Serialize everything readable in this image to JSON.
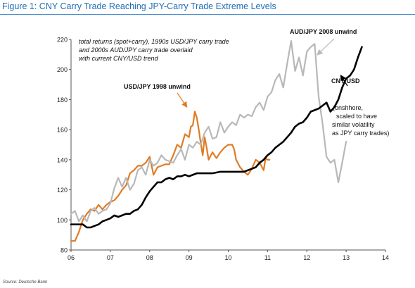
{
  "figure_title": "Figure 1: CNY Carry Trade Reaching JPY-Carry Trade Extreme Levels",
  "source": "Source: Deutsche Bank",
  "chart_data": {
    "type": "line",
    "xlim": [
      6,
      14
    ],
    "ylim": [
      80,
      220
    ],
    "x_ticks": [
      6,
      7,
      8,
      9,
      10,
      11,
      12,
      13,
      14
    ],
    "x_tick_labels": [
      "06",
      "07",
      "08",
      "09",
      "10",
      "11",
      "12",
      "13",
      "14"
    ],
    "y_ticks": [
      80,
      100,
      120,
      140,
      160,
      180,
      200,
      220
    ],
    "y_tick_labels": [
      "80",
      "100",
      "120",
      "140",
      "160",
      "180",
      "200",
      "220"
    ],
    "grid": false,
    "note_lines": [
      "total returns (spot+carry), 1990s USD/JPY carry trade",
      "and 2000s AUD/JPY carry trade overlaid",
      "with current CNY/USD trend"
    ],
    "annotations": {
      "usdjpy": "USD/JPY 1998 unwind",
      "audjpy": "AUD/JPY 2008 unwind",
      "cny_lines": [
        "CNY/USD",
        "(onshhore,",
        "scaled to have",
        "similar volatility",
        "as JPY carry trades)"
      ]
    },
    "series": [
      {
        "key": "usdjpy",
        "color": "#e07b24",
        "x": [
          6.0,
          6.1,
          6.2,
          6.3,
          6.4,
          6.5,
          6.6,
          6.7,
          6.8,
          6.9,
          7.0,
          7.1,
          7.2,
          7.3,
          7.4,
          7.5,
          7.6,
          7.7,
          7.8,
          7.9,
          8.0,
          8.1,
          8.2,
          8.3,
          8.4,
          8.5,
          8.6,
          8.7,
          8.8,
          8.9,
          9.0,
          9.05,
          9.1,
          9.15,
          9.2,
          9.25,
          9.3,
          9.35,
          9.4,
          9.45,
          9.5,
          9.6,
          9.7,
          9.8,
          9.9,
          10.0,
          10.1,
          10.15,
          10.2,
          10.3,
          10.4,
          10.5,
          10.6,
          10.7,
          10.8,
          10.9,
          10.95,
          11.0,
          11.05
        ],
        "values": [
          86,
          86,
          92,
          100,
          104,
          107,
          106,
          110,
          107,
          110,
          112,
          113,
          116,
          120,
          123,
          131,
          133,
          136,
          136,
          138,
          142,
          130,
          135,
          136,
          137,
          137,
          143,
          150,
          148,
          157,
          155,
          162,
          163,
          172,
          168,
          160,
          151,
          143,
          155,
          148,
          140,
          145,
          141,
          145,
          148,
          150,
          150,
          147,
          140,
          135,
          132,
          130,
          134,
          140,
          138,
          133,
          141,
          140,
          140
        ]
      },
      {
        "key": "audjpy",
        "color": "#b8b8b8",
        "x": [
          6.0,
          6.1,
          6.2,
          6.3,
          6.4,
          6.5,
          6.6,
          6.7,
          6.8,
          6.9,
          7.0,
          7.1,
          7.2,
          7.3,
          7.4,
          7.5,
          7.6,
          7.7,
          7.8,
          7.9,
          8.0,
          8.1,
          8.2,
          8.3,
          8.4,
          8.5,
          8.6,
          8.7,
          8.8,
          8.9,
          9.0,
          9.1,
          9.2,
          9.3,
          9.4,
          9.5,
          9.6,
          9.7,
          9.8,
          9.9,
          10.0,
          10.1,
          10.2,
          10.3,
          10.4,
          10.5,
          10.6,
          10.7,
          10.8,
          10.9,
          11.0,
          11.1,
          11.2,
          11.3,
          11.4,
          11.5,
          11.6,
          11.7,
          11.8,
          11.9,
          12.0,
          12.1,
          12.2,
          12.3,
          12.4,
          12.5,
          12.6,
          12.7,
          12.8,
          12.9,
          13.0
        ],
        "values": [
          104,
          106,
          99,
          103,
          99,
          106,
          108,
          104,
          106,
          107,
          111,
          121,
          128,
          122,
          128,
          120,
          124,
          133,
          135,
          130,
          140,
          136,
          138,
          143,
          140,
          139,
          138,
          143,
          147,
          140,
          150,
          148,
          152,
          150,
          158,
          162,
          154,
          155,
          165,
          158,
          162,
          165,
          163,
          170,
          168,
          170,
          169,
          175,
          178,
          173,
          182,
          185,
          193,
          197,
          188,
          204,
          219,
          199,
          208,
          196,
          212,
          215,
          217,
          182,
          164,
          142,
          138,
          140,
          125,
          138,
          152
        ]
      },
      {
        "key": "cnyusd",
        "color": "#000000",
        "x": [
          6.0,
          6.1,
          6.2,
          6.3,
          6.4,
          6.5,
          6.6,
          6.7,
          6.8,
          6.9,
          7.0,
          7.1,
          7.2,
          7.3,
          7.4,
          7.5,
          7.6,
          7.7,
          7.8,
          7.9,
          8.0,
          8.1,
          8.2,
          8.3,
          8.4,
          8.5,
          8.6,
          8.7,
          8.8,
          8.9,
          9.0,
          9.2,
          9.4,
          9.6,
          9.8,
          10.0,
          10.2,
          10.4,
          10.6,
          10.7,
          10.8,
          10.9,
          11.0,
          11.1,
          11.2,
          11.3,
          11.4,
          11.5,
          11.6,
          11.7,
          11.8,
          11.9,
          12.0,
          12.1,
          12.2,
          12.3,
          12.4,
          12.5,
          12.6,
          12.7,
          12.8,
          12.9,
          13.0,
          13.1,
          13.2,
          13.3,
          13.4
        ],
        "values": [
          97,
          97,
          97,
          97,
          95,
          95,
          96,
          97,
          99,
          100,
          101,
          103,
          102,
          103,
          104,
          104,
          106,
          107,
          110,
          115,
          119,
          122,
          125,
          125,
          127,
          128,
          127,
          129,
          129,
          130,
          129,
          131,
          131,
          131,
          132,
          132,
          132,
          132,
          134,
          135,
          138,
          140,
          143,
          145,
          148,
          150,
          152,
          155,
          158,
          162,
          164,
          165,
          168,
          172,
          173,
          174,
          176,
          178,
          172,
          175,
          180,
          188,
          194,
          196,
          200,
          208,
          215
        ]
      }
    ]
  }
}
